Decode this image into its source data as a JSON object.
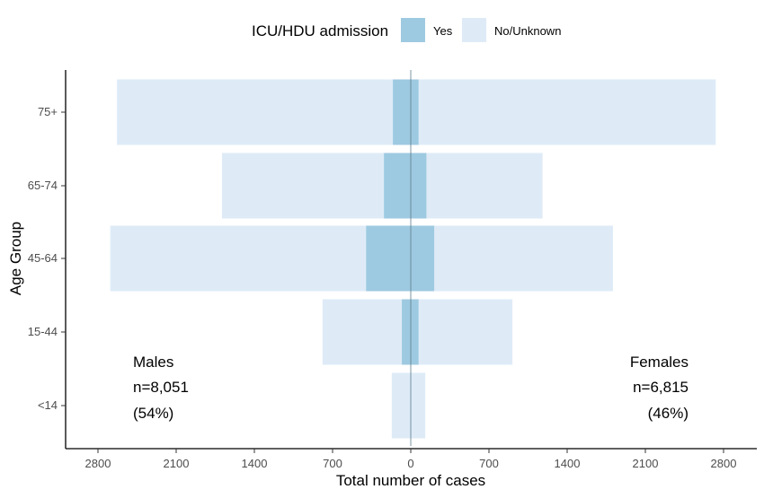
{
  "chart_data": {
    "type": "bar",
    "orientation": "horizontal-butterfly",
    "categories": [
      "<14",
      "15-44",
      "45-64",
      "65-74",
      "75+"
    ],
    "series": [
      {
        "name": "Yes",
        "color": "#9ecae1",
        "males": [
          0,
          80,
          400,
          240,
          160
        ],
        "females": [
          0,
          70,
          210,
          140,
          70
        ]
      },
      {
        "name": "No/Unknown",
        "color": "#deebf7",
        "males": [
          170,
          790,
          2690,
          1690,
          2630
        ],
        "females": [
          130,
          910,
          1810,
          1180,
          2730
        ]
      }
    ],
    "xlabel": "Total number of cases",
    "ylabel": "Age Group",
    "x_ticks": [
      "2800",
      "2100",
      "1400",
      "700",
      "0",
      "700",
      "1400",
      "2100",
      "2800"
    ],
    "x_tick_values": [
      -2800,
      -2100,
      -1400,
      -700,
      0,
      700,
      1400,
      2100,
      2800
    ],
    "xlim": [
      -2900,
      2900
    ],
    "legend": {
      "title": "ICU/HDU admission",
      "placement": "top",
      "items": [
        "Yes",
        "No/Unknown"
      ]
    },
    "annotations": {
      "males": [
        "Males",
        "n=8,051",
        "(54%)"
      ],
      "females": [
        "Females",
        "n=6,815",
        "(46%)"
      ]
    },
    "grid": false
  }
}
